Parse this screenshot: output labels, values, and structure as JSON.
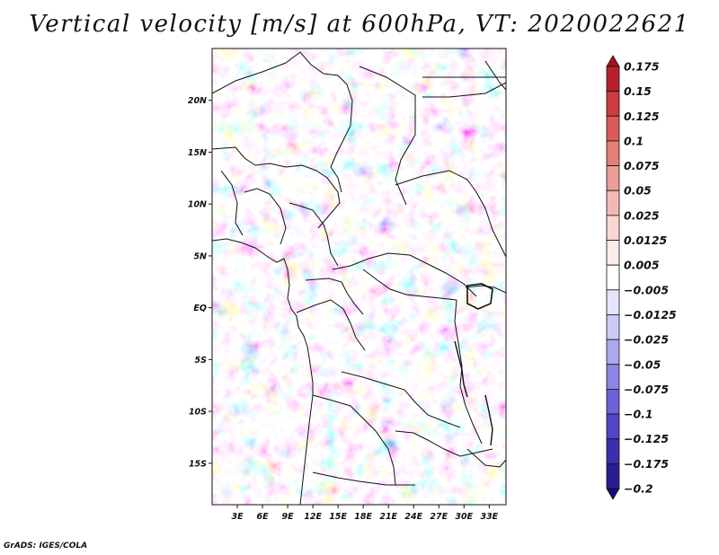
{
  "title": "Vertical velocity [m/s] at 600hPa, VT: 2020022621",
  "footer": "GrADS: IGES/COLA",
  "map": {
    "lon_range": [
      0,
      35
    ],
    "lat_range": [
      -19,
      25
    ],
    "lat_ticks": [
      {
        "label": "20N",
        "value": 20
      },
      {
        "label": "15N",
        "value": 15
      },
      {
        "label": "10N",
        "value": 10
      },
      {
        "label": "5N",
        "value": 5
      },
      {
        "label": "EQ",
        "value": 0
      },
      {
        "label": "5S",
        "value": -5
      },
      {
        "label": "10S",
        "value": -10
      },
      {
        "label": "15S",
        "value": -15
      }
    ],
    "lon_ticks": [
      {
        "label": "3E",
        "value": 3
      },
      {
        "label": "6E",
        "value": 6
      },
      {
        "label": "9E",
        "value": 9
      },
      {
        "label": "12E",
        "value": 12
      },
      {
        "label": "15E",
        "value": 15
      },
      {
        "label": "18E",
        "value": 18
      },
      {
        "label": "21E",
        "value": 21
      },
      {
        "label": "24E",
        "value": 24
      },
      {
        "label": "27E",
        "value": 27
      },
      {
        "label": "30E",
        "value": 30
      },
      {
        "label": "33E",
        "value": 33
      }
    ]
  },
  "colorbar": {
    "labels": [
      "0.175",
      "0.15",
      "0.125",
      "0.1",
      "0.075",
      "0.05",
      "0.025",
      "0.0125",
      "0.005",
      "−0.005",
      "−0.0125",
      "−0.025",
      "−0.05",
      "−0.075",
      "−0.1",
      "−0.125",
      "−0.175",
      "−0.2"
    ],
    "colors": [
      "#a0141e",
      "#b8212b",
      "#cc3b3f",
      "#db5a58",
      "#e47e78",
      "#eb9d96",
      "#f2bab4",
      "#f8d6d2",
      "#fcecea",
      "#ffffff",
      "#e4e4fa",
      "#cbc9f5",
      "#aca8ee",
      "#8c85e4",
      "#6c62d6",
      "#5045c4",
      "#3a2fb0",
      "#281e94",
      "#1a0c78"
    ]
  }
}
